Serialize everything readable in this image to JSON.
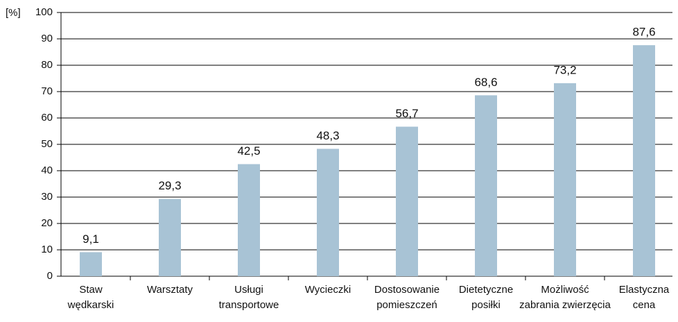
{
  "chart_data": {
    "type": "bar",
    "ylabel": "[%]",
    "categories": [
      "Staw\nwędkarski",
      "Warsztaty",
      "Usługi\ntransportowe",
      "Wycieczki",
      "Dostosowanie\npomieszczeń",
      "Dietetyczne\nposiłki",
      "Możliwość\nzabrania zwierzęcia",
      "Elastyczna\ncena"
    ],
    "values": [
      9.1,
      29.3,
      42.5,
      48.3,
      56.7,
      68.6,
      73.2,
      87.6
    ],
    "value_labels": [
      "9,1",
      "29,3",
      "42,5",
      "48,3",
      "56,7",
      "68,6",
      "73,2",
      "87,6"
    ],
    "color": "#a8c3d5",
    "ylim": [
      0,
      100
    ],
    "yticks": [
      0,
      10,
      20,
      30,
      40,
      50,
      60,
      70,
      80,
      90,
      100
    ],
    "grid": true
  }
}
